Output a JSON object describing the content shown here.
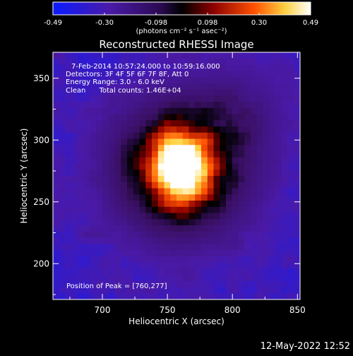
{
  "chart_data": {
    "type": "heatmap",
    "title": "Reconstructed RHESSI Image",
    "xlabel": "Heliocentric X (arcsec)",
    "ylabel": "Heliocentric Y (arcsec)",
    "xlim": [
      662,
      852
    ],
    "ylim": [
      171,
      371
    ],
    "xticks": [
      700,
      750,
      800,
      850
    ],
    "yticks": [
      200,
      250,
      300,
      350
    ],
    "colorbar": {
      "ticks": [
        "-0.49",
        "-0.30",
        "-0.098",
        "0.098",
        "0.30",
        "0.49"
      ],
      "range": [
        -0.49,
        0.49
      ],
      "unit_label": "(photons cm⁻² s⁻¹ asec⁻²)",
      "colors": [
        "#0b1bff",
        "#4a1aa8",
        "#3a1060",
        "#000000",
        "#a00000",
        "#ff6a00",
        "#ffff80",
        "#ffffff"
      ]
    },
    "annotations": [
      "7-Feb-2014 10:57:24.000 to 10:59:16.000",
      "Detectors: 3F 4F 5F 6F 7F 8F, Att 0",
      "Energy Range: 3.0 - 6.0 keV",
      "Clean      Total counts: 1.46E+04"
    ],
    "peak_label": "Position of Peak = [760,277]",
    "peak": [
      760,
      277
    ],
    "min_value": -0.49,
    "max_value": 0.49
  },
  "footer": {
    "date": "12-May-2022 12:52"
  }
}
